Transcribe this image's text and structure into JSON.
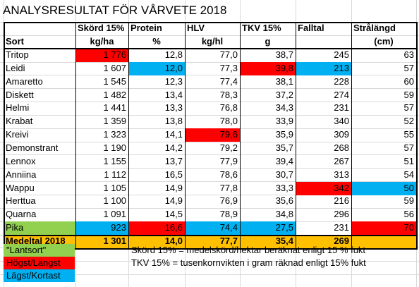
{
  "title": "ANALYSRESULTAT FÖR VÅRVETE 2018",
  "headers": {
    "row1": [
      "",
      "Skörd 15%",
      "Protein",
      "HLV",
      "TKV 15%",
      "Falltal",
      "Strålängd"
    ],
    "row2": [
      "Sort",
      "kg/ha",
      "%",
      "kg/hl",
      "g",
      "",
      "(cm)"
    ]
  },
  "rows": [
    {
      "sort": "Tritop",
      "skord": "1 776",
      "protein": "12,8",
      "hlv": "77,0",
      "tkv": "38,7",
      "falltal": "245",
      "stra": "63",
      "hl": {
        "skord": "high"
      }
    },
    {
      "sort": "Leidi",
      "skord": "1 607",
      "protein": "12,0",
      "hlv": "77,3",
      "tkv": "39,8",
      "falltal": "213",
      "stra": "57",
      "hl": {
        "protein": "low",
        "tkv": "high",
        "falltal": "low"
      }
    },
    {
      "sort": "Amaretto",
      "skord": "1 545",
      "protein": "12,3",
      "hlv": "77,4",
      "tkv": "38,1",
      "falltal": "228",
      "stra": "60",
      "hl": {}
    },
    {
      "sort": "Diskett",
      "skord": "1 482",
      "protein": "13,4",
      "hlv": "78,3",
      "tkv": "37,2",
      "falltal": "274",
      "stra": "59",
      "hl": {}
    },
    {
      "sort": "Helmi",
      "skord": "1 441",
      "protein": "13,3",
      "hlv": "76,8",
      "tkv": "34,3",
      "falltal": "231",
      "stra": "57",
      "hl": {}
    },
    {
      "sort": "Krabat",
      "skord": "1 359",
      "protein": "13,8",
      "hlv": "78,0",
      "tkv": "33,9",
      "falltal": "340",
      "stra": "52",
      "hl": {}
    },
    {
      "sort": "Kreivi",
      "skord": "1 323",
      "protein": "14,1",
      "hlv": "79,6",
      "tkv": "35,9",
      "falltal": "309",
      "stra": "55",
      "hl": {
        "hlv": "high"
      }
    },
    {
      "sort": "Demonstrant",
      "skord": "1 190",
      "protein": "14,2",
      "hlv": "79,2",
      "tkv": "35,7",
      "falltal": "268",
      "stra": "57",
      "hl": {}
    },
    {
      "sort": "Lennox",
      "skord": "1 155",
      "protein": "13,7",
      "hlv": "77,9",
      "tkv": "39,4",
      "falltal": "267",
      "stra": "51",
      "hl": {}
    },
    {
      "sort": "Anniina",
      "skord": "1 112",
      "protein": "16,5",
      "hlv": "78,6",
      "tkv": "30,7",
      "falltal": "313",
      "stra": "54",
      "hl": {}
    },
    {
      "sort": "Wappu",
      "skord": "1 105",
      "protein": "14,9",
      "hlv": "77,8",
      "tkv": "33,3",
      "falltal": "342",
      "stra": "50",
      "hl": {
        "falltal": "high",
        "stra": "low"
      }
    },
    {
      "sort": "Herttua",
      "skord": "1 100",
      "protein": "14,9",
      "hlv": "76,9",
      "tkv": "35,6",
      "falltal": "216",
      "stra": "59",
      "hl": {}
    },
    {
      "sort": "Quarna",
      "skord": "1 091",
      "protein": "14,5",
      "hlv": "78,9",
      "tkv": "34,8",
      "falltal": "296",
      "stra": "56",
      "hl": {}
    },
    {
      "sort": "Pika",
      "skord": "923",
      "protein": "16,6",
      "hlv": "74,4",
      "tkv": "27,5",
      "falltal": "231",
      "stra": "70",
      "hl": {
        "sort": "green",
        "skord": "low",
        "protein": "high",
        "hlv": "low",
        "tkv": "low",
        "stra": "high"
      }
    }
  ],
  "average": {
    "sort": "Medeltal 2018",
    "skord": "1 301",
    "protein": "14,0",
    "hlv": "77,7",
    "tkv": "35,4",
    "falltal": "269",
    "stra": ""
  },
  "legend": {
    "lantsort": "\"Lantsort\"",
    "hogst": "Högst/Längst",
    "lagst": "Lägst/Kortast"
  },
  "notes": {
    "skord": "Skörd 15% = medelskörd/hektar beräknat enligt 15 % fukt",
    "tkv": "TKV 15% = tusenkornvikten i gram räknad enligt 15% fukt"
  },
  "colors": {
    "high": "#ff0000",
    "low": "#00b0f0",
    "green": "#92d050",
    "average": "#ffc000"
  }
}
